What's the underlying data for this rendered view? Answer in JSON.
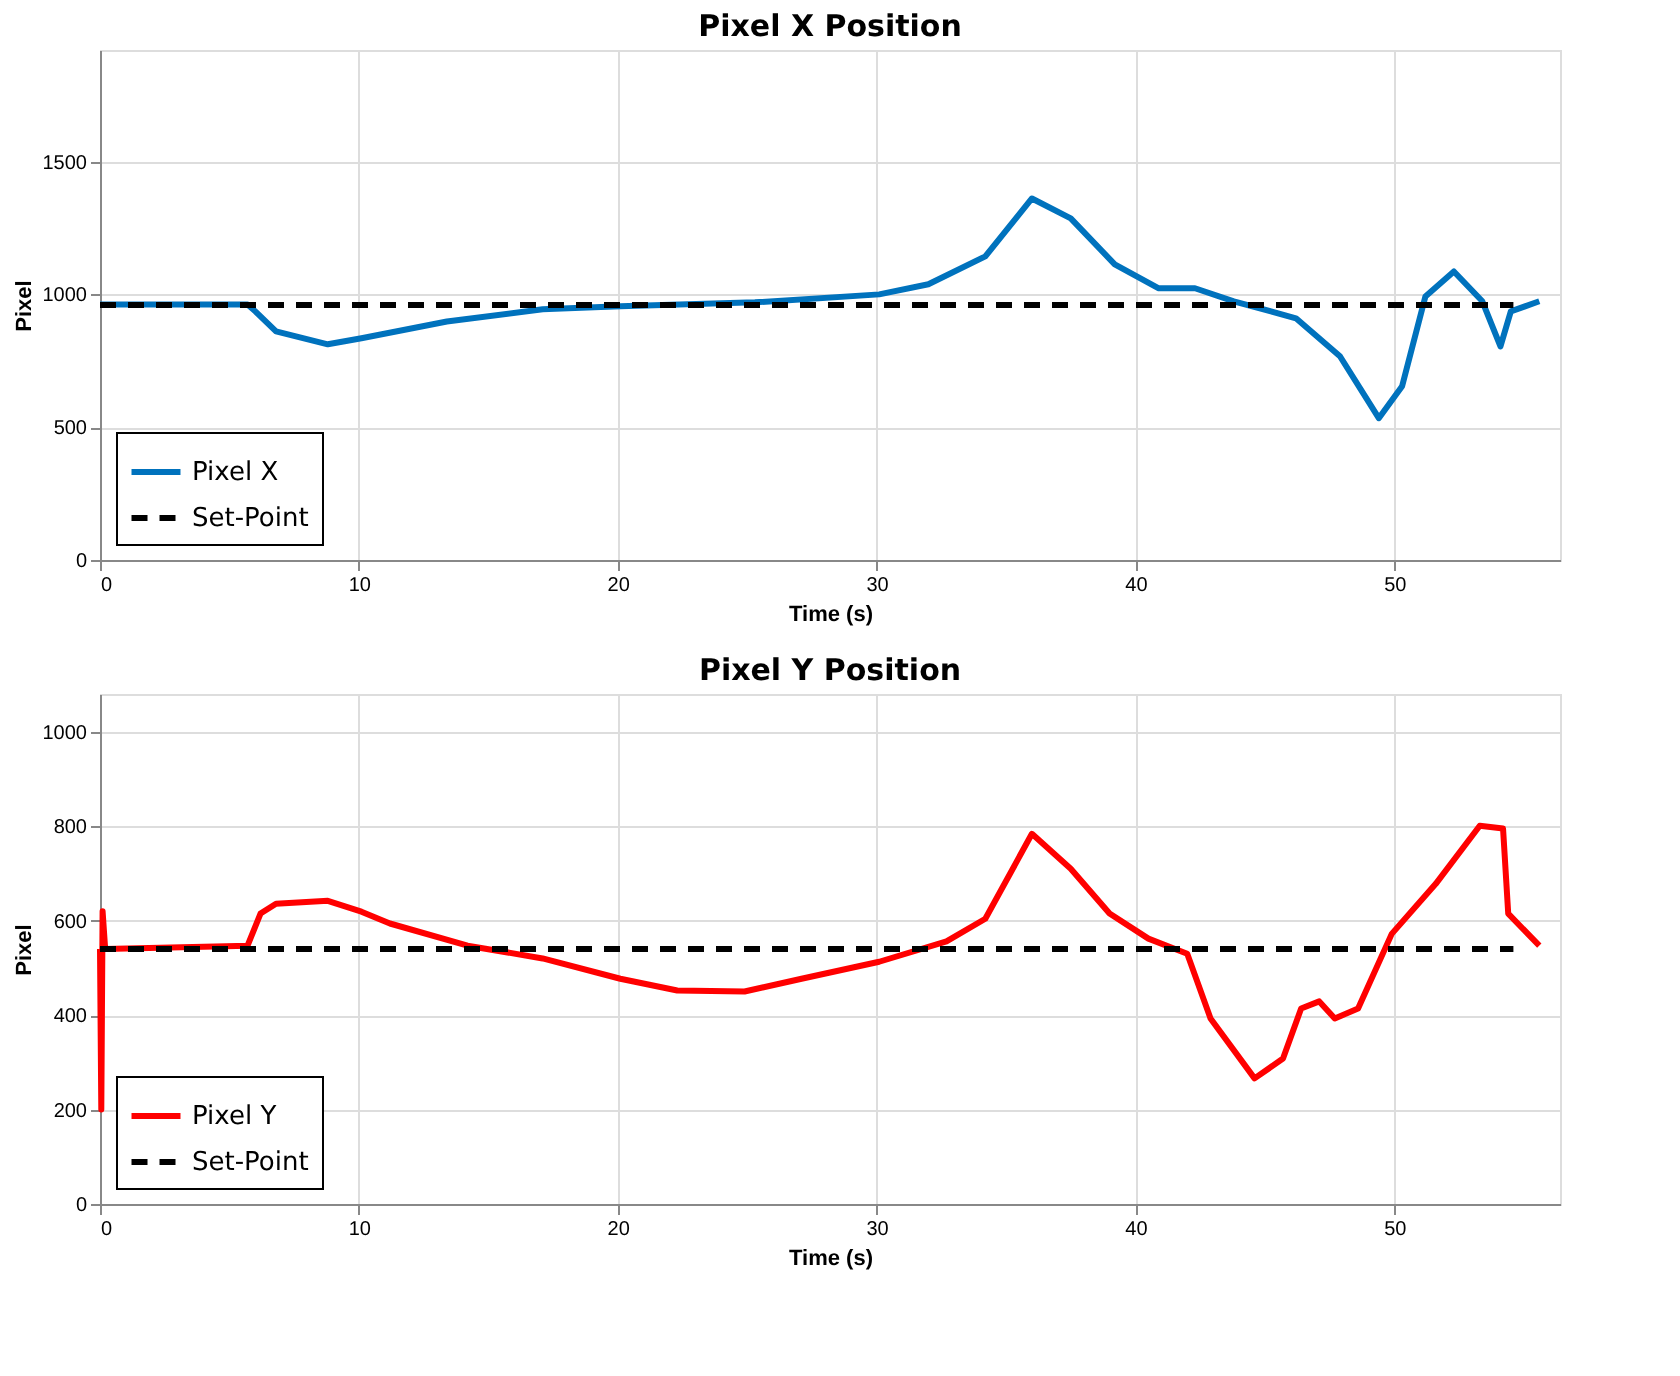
{
  "chart_data": [
    {
      "type": "line",
      "title": "Pixel X Position",
      "xlabel": "Time (s)",
      "ylabel": "Pixel",
      "xlim": [
        0,
        56.4
      ],
      "xticks": [
        0,
        10,
        20,
        30,
        40,
        50
      ],
      "ylim": [
        0,
        1920
      ],
      "yticks": [
        0,
        500,
        1000,
        1500
      ],
      "grid": true,
      "legend": "bottom left",
      "series": [
        {
          "name": "Pixel X",
          "color": "#0072bd",
          "line_style": "solid",
          "x": [
            0,
            5.7,
            6.0,
            6.8,
            8.8,
            10.1,
            13.4,
            17.1,
            20.1,
            25.3,
            30.1,
            32,
            34.2,
            36,
            37.5,
            39.2,
            40.9,
            42.3,
            43.8,
            46.2,
            47.9,
            49.4,
            50.3,
            51.2,
            52.3,
            53.4,
            54.1,
            54.5,
            55.6
          ],
          "values": [
            962,
            962,
            936,
            861,
            812,
            835,
            898,
            944,
            955,
            970,
            1000,
            1038,
            1143,
            1361,
            1286,
            1113,
            1023,
            1023,
            974,
            910,
            767,
            534,
            654,
            992,
            1086,
            974,
            804,
            936,
            974
          ]
        },
        {
          "name": "Set-Point",
          "color": "#000000",
          "line_style": "dashed",
          "x": [
            0,
            54.6
          ],
          "values": [
            960,
            960
          ]
        }
      ]
    },
    {
      "type": "line",
      "title": "Pixel Y Position",
      "xlabel": "Time (s)",
      "ylabel": "Pixel",
      "xlim": [
        0,
        56.4
      ],
      "xticks": [
        0,
        10,
        20,
        30,
        40,
        50
      ],
      "ylim": [
        0,
        1080
      ],
      "yticks": [
        0,
        200,
        400,
        600,
        800,
        1000
      ],
      "grid": true,
      "legend": "bottom left",
      "series": [
        {
          "name": "Pixel Y",
          "color": "#ff0000",
          "line_style": "solid",
          "x": [
            0,
            0.05,
            0.1,
            0.2,
            5.7,
            6.2,
            6.8,
            8.8,
            10.1,
            11.2,
            14.2,
            17.1,
            20.1,
            22.3,
            24.9,
            27.1,
            30.1,
            32.7,
            34.2,
            36,
            37.5,
            39,
            40.5,
            42,
            42.9,
            44.6,
            45.7,
            46.4,
            47.1,
            47.7,
            48.6,
            49.9,
            51.6,
            53.3,
            54.2,
            54.4,
            55.6
          ],
          "values": [
            540,
            200,
            620,
            540,
            547,
            615,
            636,
            642,
            619,
            594,
            547,
            520,
            477,
            452,
            450,
            477,
            513,
            556,
            604,
            784,
            710,
            615,
            562,
            530,
            393,
            266,
            308,
            414,
            429,
            393,
            414,
            572,
            678,
            801,
            795,
            615,
            547
          ]
        },
        {
          "name": "Set-Point",
          "color": "#000000",
          "line_style": "dashed",
          "x": [
            0,
            54.6
          ],
          "values": [
            540,
            540
          ]
        }
      ]
    }
  ]
}
